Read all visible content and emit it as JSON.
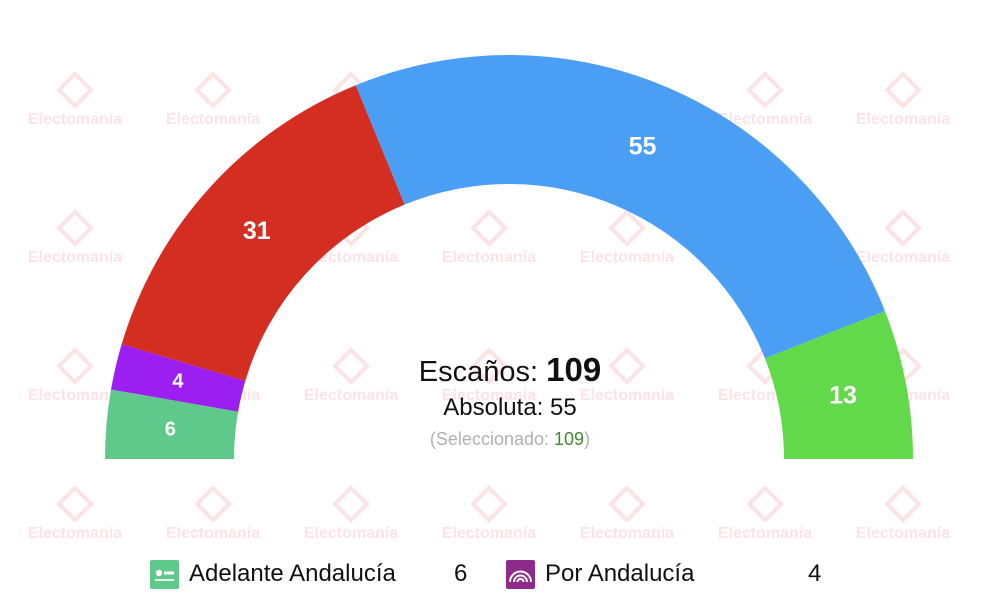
{
  "chart_data": {
    "type": "parliament-hemicycle",
    "total_seats": 109,
    "segments": [
      {
        "seats": 6,
        "color": "#5ec98a"
      },
      {
        "seats": 4,
        "color": "#9b1ff0"
      },
      {
        "seats": 31,
        "color": "#d42e22"
      },
      {
        "seats": 55,
        "color": "#4a9ff5"
      },
      {
        "seats": 13,
        "color": "#62d94a"
      }
    ]
  },
  "summary": {
    "escanos_label": "Escaños:",
    "escanos_value": "109",
    "absoluta_label": "Absoluta:",
    "absoluta_value": "55",
    "selected_label": "(Seleccionado:",
    "selected_value": "109",
    "selected_close": ")"
  },
  "legend": [
    {
      "name": "Adelante Andalucía",
      "seats": "6",
      "logo_color": "#5ec98a",
      "logo_icon": "adelante-logo-icon"
    },
    {
      "name": "Por Andalucía",
      "seats": "4",
      "logo_color": "#8e2a8a",
      "logo_icon": "rainbow-arcs-icon"
    }
  ],
  "watermark": {
    "text": "Electomanía",
    "color": "#fbe3e6"
  }
}
